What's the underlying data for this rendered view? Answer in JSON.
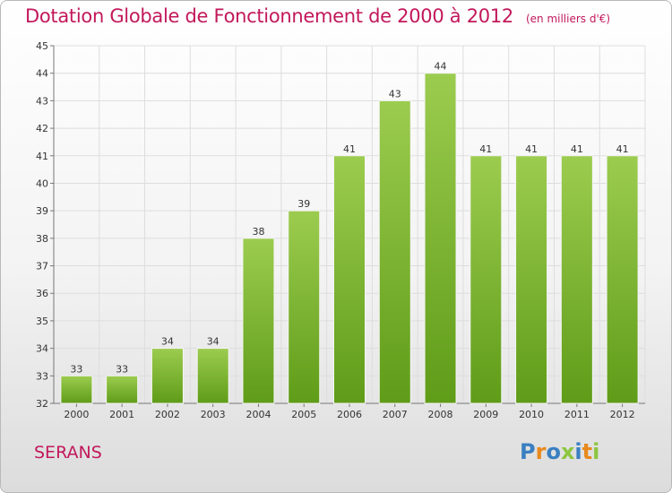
{
  "header": {
    "title": "Dotation Globale de Fonctionnement de 2000 à 2012",
    "unit": "(en milliers d'€)"
  },
  "place_name": "SERANS",
  "logo": {
    "text": "Proxiti",
    "colors": [
      "#3a7fc1",
      "#e8891c",
      "#3a7fc1",
      "#8cc63f",
      "#3a7fc1",
      "#e8891c",
      "#8cc63f"
    ]
  },
  "colors": {
    "bar_top": "#9ccc4f",
    "bar_bottom": "#5f9c18",
    "title": "#c2185b",
    "grid": "#dddddd"
  },
  "chart_data": {
    "type": "bar",
    "title": "Dotation Globale de Fonctionnement de 2000 à 2012",
    "xlabel": "",
    "ylabel": "",
    "categories": [
      "2000",
      "2001",
      "2002",
      "2003",
      "2004",
      "2005",
      "2006",
      "2007",
      "2008",
      "2009",
      "2010",
      "2011",
      "2012"
    ],
    "values": [
      33,
      33,
      34,
      34,
      38,
      39,
      41,
      43,
      44,
      41,
      41,
      41,
      41
    ],
    "data_labels": [
      "33",
      "33",
      "34",
      "34",
      "38",
      "39",
      "41",
      "43",
      "44",
      "41",
      "41",
      "41",
      "41"
    ],
    "ylim": [
      32,
      45
    ],
    "yticks": [
      32,
      33,
      34,
      35,
      36,
      37,
      38,
      39,
      40,
      41,
      42,
      43,
      44,
      45
    ],
    "grid": true,
    "legend": "none"
  }
}
